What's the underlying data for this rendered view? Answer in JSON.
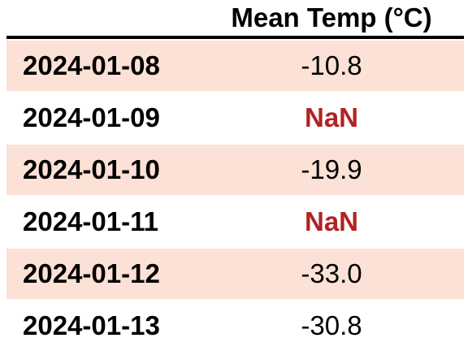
{
  "chart_data": {
    "type": "table",
    "columns": [
      "",
      "Mean Temp (°C)"
    ],
    "rows": [
      {
        "date": "2024-01-08",
        "value": "-10.8",
        "missing": false
      },
      {
        "date": "2024-01-09",
        "value": "NaN",
        "missing": true
      },
      {
        "date": "2024-01-10",
        "value": "-19.9",
        "missing": false
      },
      {
        "date": "2024-01-11",
        "value": "NaN",
        "missing": true
      },
      {
        "date": "2024-01-12",
        "value": "-33.0",
        "missing": false
      },
      {
        "date": "2024-01-13",
        "value": "-30.8",
        "missing": false
      }
    ],
    "colors": {
      "stripe": "#fbe1d6",
      "nan_text": "#b22222"
    }
  }
}
